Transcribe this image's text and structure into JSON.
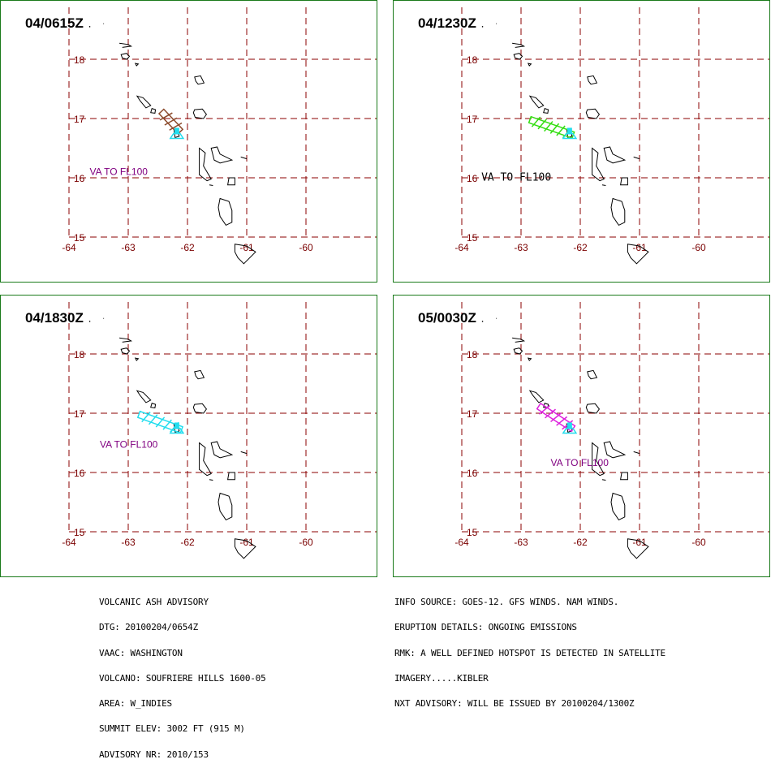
{
  "panels": [
    {
      "time": "04/0615Z",
      "ash_color": "#8b4a2b",
      "ash_axis": [
        [
          -62.44,
          17.12
        ],
        [
          -62.12,
          16.78
        ]
      ],
      "label": "VA TO FL100",
      "label_color": "#800080",
      "label_pos": [
        -63.65,
        16.05
      ]
    },
    {
      "time": "04/1230Z",
      "ash_color": "#33dd11",
      "ash_axis": [
        [
          -62.85,
          16.98
        ],
        [
          -62.12,
          16.72
        ]
      ],
      "label": "VA TO FL100",
      "label_color": "#000000",
      "label_pos": [
        -63.67,
        15.95
      ]
    },
    {
      "time": "04/1830Z",
      "ash_color": "#22ddee",
      "ash_axis": [
        [
          -62.82,
          16.98
        ],
        [
          -62.1,
          16.72
        ]
      ],
      "label": "VA TO FL100",
      "label_color": "#800080",
      "label_pos": [
        -63.48,
        16.42
      ]
    },
    {
      "time": "05/0030Z",
      "ash_color": "#dd22dd",
      "ash_axis": [
        [
          -62.7,
          17.12
        ],
        [
          -62.12,
          16.74
        ]
      ],
      "label": "VA TO FL100",
      "label_color": "#800080",
      "label_pos": [
        -62.5,
        16.11
      ]
    }
  ],
  "map": {
    "lon_ticks": [
      "-64",
      "-63",
      "-62",
      "-61",
      "-60"
    ],
    "lat_ticks": [
      "18",
      "17",
      "16",
      "15"
    ],
    "lon_range": [
      -64,
      -60
    ],
    "lat_range": [
      15,
      18
    ],
    "grid_style": "dashed",
    "grid_color": "#8b0000",
    "volcano_color": "#22ddee"
  },
  "advisory_left": [
    "VOLCANIC ASH ADVISORY",
    "DTG: 20100204/0654Z",
    "VAAC: WASHINGTON",
    "VOLCANO: SOUFRIERE HILLS 1600-05",
    "AREA: W_INDIES",
    "SUMMIT ELEV: 3002 FT (915 M)",
    "ADVISORY NR: 2010/153"
  ],
  "advisory_right": [
    "INFO SOURCE: GOES-12. GFS WINDS. NAM WINDS.",
    "ERUPTION DETAILS: ONGOING EMISSIONS",
    "RMK: A WELL DEFINED HOTSPOT IS DETECTED IN SATELLITE",
    "IMAGERY.....KIBLER",
    "NXT ADVISORY: WILL BE ISSUED BY 20100204/1300Z"
  ]
}
